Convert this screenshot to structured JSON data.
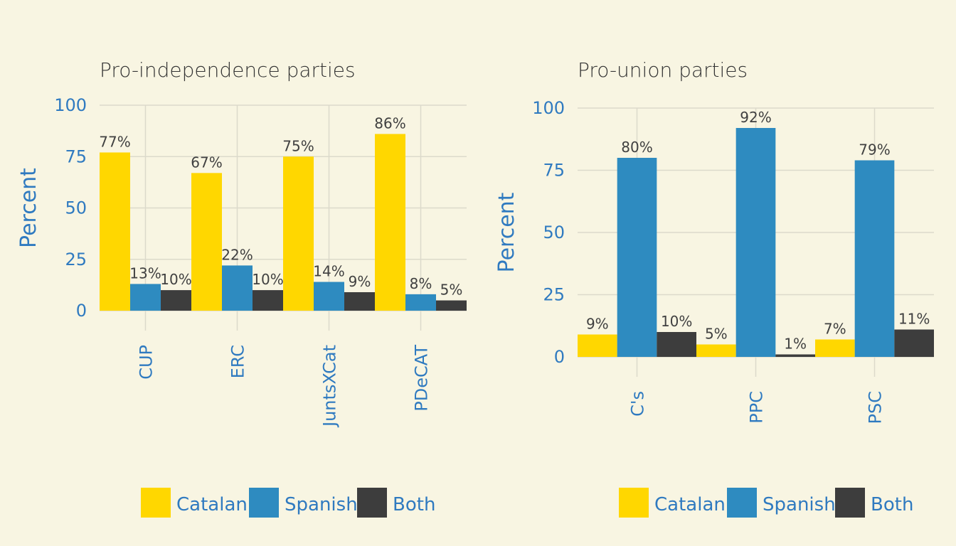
{
  "chart_data": [
    {
      "type": "bar",
      "title": "Pro-independence parties",
      "xlabel": "",
      "ylabel": "Percent",
      "ylim": [
        0,
        100
      ],
      "yticks": [
        0,
        25,
        50,
        75,
        100
      ],
      "categories": [
        "CUP",
        "ERC",
        "JuntsXCat",
        "PDeCAT"
      ],
      "series": [
        {
          "name": "Catalan",
          "values": [
            77,
            67,
            75,
            86
          ],
          "labels": [
            "77%",
            "67%",
            "75%",
            "86%"
          ]
        },
        {
          "name": "Spanish",
          "values": [
            13,
            22,
            14,
            8
          ],
          "labels": [
            "13%",
            "22%",
            "14%",
            "8%"
          ]
        },
        {
          "name": "Both",
          "values": [
            10,
            10,
            9,
            5
          ],
          "labels": [
            "10%",
            "10%",
            "9%",
            "5%"
          ]
        }
      ],
      "grid": true,
      "legend_position": "bottom"
    },
    {
      "type": "bar",
      "title": "Pro-union parties",
      "xlabel": "",
      "ylabel": "Percent",
      "ylim": [
        0,
        100
      ],
      "yticks": [
        0,
        25,
        50,
        75,
        100
      ],
      "categories": [
        "C's",
        "PPC",
        "PSC"
      ],
      "series": [
        {
          "name": "Catalan",
          "values": [
            9,
            5,
            7
          ],
          "labels": [
            "9%",
            "5%",
            "7%"
          ]
        },
        {
          "name": "Spanish",
          "values": [
            80,
            92,
            79
          ],
          "labels": [
            "80%",
            "92%",
            "79%"
          ]
        },
        {
          "name": "Both",
          "values": [
            10,
            1,
            11
          ],
          "labels": [
            "10%",
            "1%",
            "11%"
          ]
        }
      ],
      "grid": true,
      "legend_position": "bottom"
    }
  ],
  "colors": {
    "Catalan": "#ffd700",
    "Spanish": "#2e8bc0",
    "Both": "#3d3d3d",
    "background": "#f8f5e2",
    "axis_text": "#2f7ac0"
  }
}
